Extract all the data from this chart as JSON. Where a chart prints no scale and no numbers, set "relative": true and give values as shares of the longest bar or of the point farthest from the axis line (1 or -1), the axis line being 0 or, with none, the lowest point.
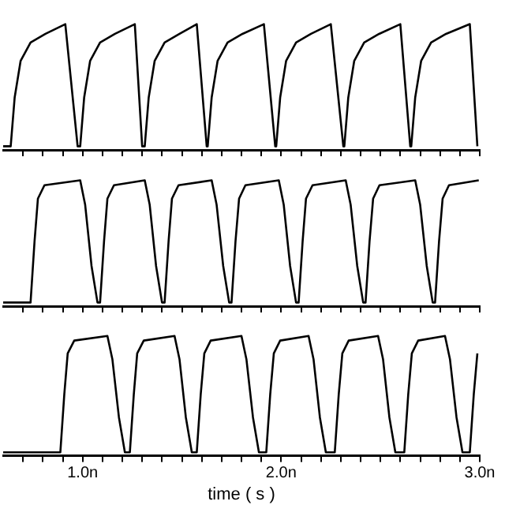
{
  "chart_data": [
    {
      "type": "line",
      "relative": true,
      "grid": false,
      "legend": false,
      "tick_labels": false,
      "marker": "none",
      "line_style": "solid",
      "xlim": [
        0.6,
        3.0
      ],
      "xticks": [
        {
          "value": 0.7,
          "label": null
        },
        {
          "value": 0.8,
          "label": null
        },
        {
          "value": 0.9,
          "label": null
        },
        {
          "value": 1.0,
          "label": null
        },
        {
          "value": 1.1,
          "label": null
        },
        {
          "value": 1.2,
          "label": null
        },
        {
          "value": 1.3,
          "label": null
        },
        {
          "value": 1.4,
          "label": null
        },
        {
          "value": 1.5,
          "label": null
        },
        {
          "value": 1.6,
          "label": null
        },
        {
          "value": 1.7,
          "label": null
        },
        {
          "value": 1.8,
          "label": null
        },
        {
          "value": 1.9,
          "label": null
        },
        {
          "value": 2.0,
          "label": null
        },
        {
          "value": 2.1,
          "label": null
        },
        {
          "value": 2.2,
          "label": null
        },
        {
          "value": 2.3,
          "label": null
        },
        {
          "value": 2.4,
          "label": null
        },
        {
          "value": 2.5,
          "label": null
        },
        {
          "value": 2.6,
          "label": null
        },
        {
          "value": 2.7,
          "label": null
        },
        {
          "value": 2.8,
          "label": null
        },
        {
          "value": 2.9,
          "label": null
        },
        {
          "value": 3.0,
          "label": null
        }
      ],
      "series": [
        {
          "color": "#000000",
          "x": [
            0.6,
            0.638,
            0.658,
            0.688,
            0.738,
            0.813,
            0.913,
            0.975,
            0.988,
            1.008,
            1.038,
            1.088,
            1.163,
            1.263,
            1.3,
            1.313,
            1.333,
            1.363,
            1.413,
            1.488,
            1.575,
            1.625,
            1.63,
            1.65,
            1.68,
            1.73,
            1.805,
            1.913,
            1.97,
            1.975,
            1.995,
            2.025,
            2.075,
            2.15,
            2.25,
            2.313,
            2.318,
            2.338,
            2.368,
            2.418,
            2.493,
            2.6,
            2.65,
            2.655,
            2.675,
            2.705,
            2.755,
            2.83,
            2.95,
            2.988
          ],
          "values": [
            0,
            0,
            0.4,
            0.7,
            0.85,
            0.92,
            1,
            0,
            0,
            0.4,
            0.7,
            0.85,
            0.92,
            1,
            0,
            0,
            0.4,
            0.7,
            0.85,
            0.92,
            1,
            0,
            0,
            0.4,
            0.7,
            0.85,
            0.92,
            1,
            0,
            0,
            0.4,
            0.7,
            0.85,
            0.92,
            1,
            0,
            0,
            0.4,
            0.7,
            0.85,
            0.92,
            1,
            0,
            0,
            0.4,
            0.7,
            0.85,
            0.92,
            1,
            0
          ]
        }
      ]
    },
    {
      "type": "line",
      "relative": true,
      "grid": false,
      "legend": false,
      "tick_labels": false,
      "marker": "none",
      "line_style": "solid",
      "xlim": [
        0.6,
        3.0
      ],
      "xticks": [
        {
          "value": 0.7,
          "label": null
        },
        {
          "value": 0.8,
          "label": null
        },
        {
          "value": 0.9,
          "label": null
        },
        {
          "value": 1.0,
          "label": null
        },
        {
          "value": 1.1,
          "label": null
        },
        {
          "value": 1.2,
          "label": null
        },
        {
          "value": 1.3,
          "label": null
        },
        {
          "value": 1.4,
          "label": null
        },
        {
          "value": 1.5,
          "label": null
        },
        {
          "value": 1.6,
          "label": null
        },
        {
          "value": 1.7,
          "label": null
        },
        {
          "value": 1.8,
          "label": null
        },
        {
          "value": 1.9,
          "label": null
        },
        {
          "value": 2.0,
          "label": null
        },
        {
          "value": 2.1,
          "label": null
        },
        {
          "value": 2.2,
          "label": null
        },
        {
          "value": 2.3,
          "label": null
        },
        {
          "value": 2.4,
          "label": null
        },
        {
          "value": 2.5,
          "label": null
        },
        {
          "value": 2.6,
          "label": null
        },
        {
          "value": 2.7,
          "label": null
        },
        {
          "value": 2.8,
          "label": null
        },
        {
          "value": 2.9,
          "label": null
        },
        {
          "value": 3.0,
          "label": null
        }
      ],
      "series": [
        {
          "color": "#000000",
          "x": [
            0.6,
            0.738,
            0.758,
            0.775,
            0.808,
            0.988,
            1.013,
            1.045,
            1.075,
            1.088,
            1.108,
            1.125,
            1.158,
            1.313,
            1.338,
            1.37,
            1.4,
            1.413,
            1.433,
            1.45,
            1.483,
            1.65,
            1.675,
            1.708,
            1.738,
            1.75,
            1.77,
            1.788,
            1.82,
            1.988,
            2.013,
            2.045,
            2.075,
            2.088,
            2.108,
            2.125,
            2.158,
            2.325,
            2.35,
            2.383,
            2.413,
            2.425,
            2.445,
            2.463,
            2.495,
            2.675,
            2.7,
            2.733,
            2.763,
            2.775,
            2.795,
            2.813,
            2.845,
            2.995
          ],
          "values": [
            0,
            0,
            0.5,
            0.85,
            0.96,
            1,
            0.8,
            0.3,
            0,
            0,
            0.5,
            0.85,
            0.96,
            1,
            0.8,
            0.3,
            0,
            0,
            0.5,
            0.85,
            0.96,
            1,
            0.8,
            0.3,
            0,
            0,
            0.5,
            0.85,
            0.96,
            1,
            0.8,
            0.3,
            0,
            0,
            0.5,
            0.85,
            0.96,
            1,
            0.8,
            0.3,
            0,
            0,
            0.5,
            0.85,
            0.96,
            1,
            0.8,
            0.3,
            0,
            0,
            0.5,
            0.85,
            0.96,
            1
          ]
        }
      ]
    },
    {
      "type": "line",
      "relative": true,
      "grid": false,
      "legend": false,
      "tick_labels": "x",
      "marker": "none",
      "line_style": "solid",
      "xlim": [
        0.6,
        3.0
      ],
      "xlabel": "time ( s )",
      "xticks": [
        {
          "value": 0.7,
          "label": null
        },
        {
          "value": 0.8,
          "label": null
        },
        {
          "value": 0.9,
          "label": null
        },
        {
          "value": 1.0,
          "label": "1.0n"
        },
        {
          "value": 1.1,
          "label": null
        },
        {
          "value": 1.2,
          "label": null
        },
        {
          "value": 1.3,
          "label": null
        },
        {
          "value": 1.4,
          "label": null
        },
        {
          "value": 1.5,
          "label": null
        },
        {
          "value": 1.6,
          "label": null
        },
        {
          "value": 1.7,
          "label": null
        },
        {
          "value": 1.8,
          "label": null
        },
        {
          "value": 1.9,
          "label": null
        },
        {
          "value": 2.0,
          "label": "2.0n"
        },
        {
          "value": 2.1,
          "label": null
        },
        {
          "value": 2.2,
          "label": null
        },
        {
          "value": 2.3,
          "label": null
        },
        {
          "value": 2.4,
          "label": null
        },
        {
          "value": 2.5,
          "label": null
        },
        {
          "value": 2.6,
          "label": null
        },
        {
          "value": 2.7,
          "label": null
        },
        {
          "value": 2.8,
          "label": null
        },
        {
          "value": 2.9,
          "label": null
        },
        {
          "value": 3.0,
          "label": "3.0n"
        }
      ],
      "series": [
        {
          "color": "#000000",
          "x": [
            0.6,
            0.888,
            0.908,
            0.925,
            0.958,
            1.125,
            1.15,
            1.183,
            1.213,
            1.238,
            1.258,
            1.275,
            1.308,
            1.463,
            1.488,
            1.52,
            1.55,
            1.575,
            1.595,
            1.613,
            1.645,
            1.8,
            1.825,
            1.858,
            1.888,
            1.925,
            1.945,
            1.963,
            1.995,
            2.138,
            2.163,
            2.195,
            2.225,
            2.27,
            2.29,
            2.308,
            2.34,
            2.488,
            2.513,
            2.545,
            2.575,
            2.62,
            2.64,
            2.658,
            2.69,
            2.825,
            2.85,
            2.883,
            2.913,
            2.95,
            2.97,
            2.988
          ],
          "values": [
            0,
            0,
            0.5,
            0.85,
            0.96,
            1,
            0.8,
            0.3,
            0,
            0,
            0.5,
            0.85,
            0.96,
            1,
            0.8,
            0.3,
            0,
            0,
            0.5,
            0.85,
            0.96,
            1,
            0.8,
            0.3,
            0,
            0,
            0.5,
            0.85,
            0.96,
            1,
            0.8,
            0.3,
            0,
            0,
            0.5,
            0.85,
            0.96,
            1,
            0.8,
            0.3,
            0,
            0,
            0.5,
            0.85,
            0.96,
            1,
            0.8,
            0.3,
            0,
            0,
            0.5,
            0.85
          ]
        }
      ]
    }
  ]
}
